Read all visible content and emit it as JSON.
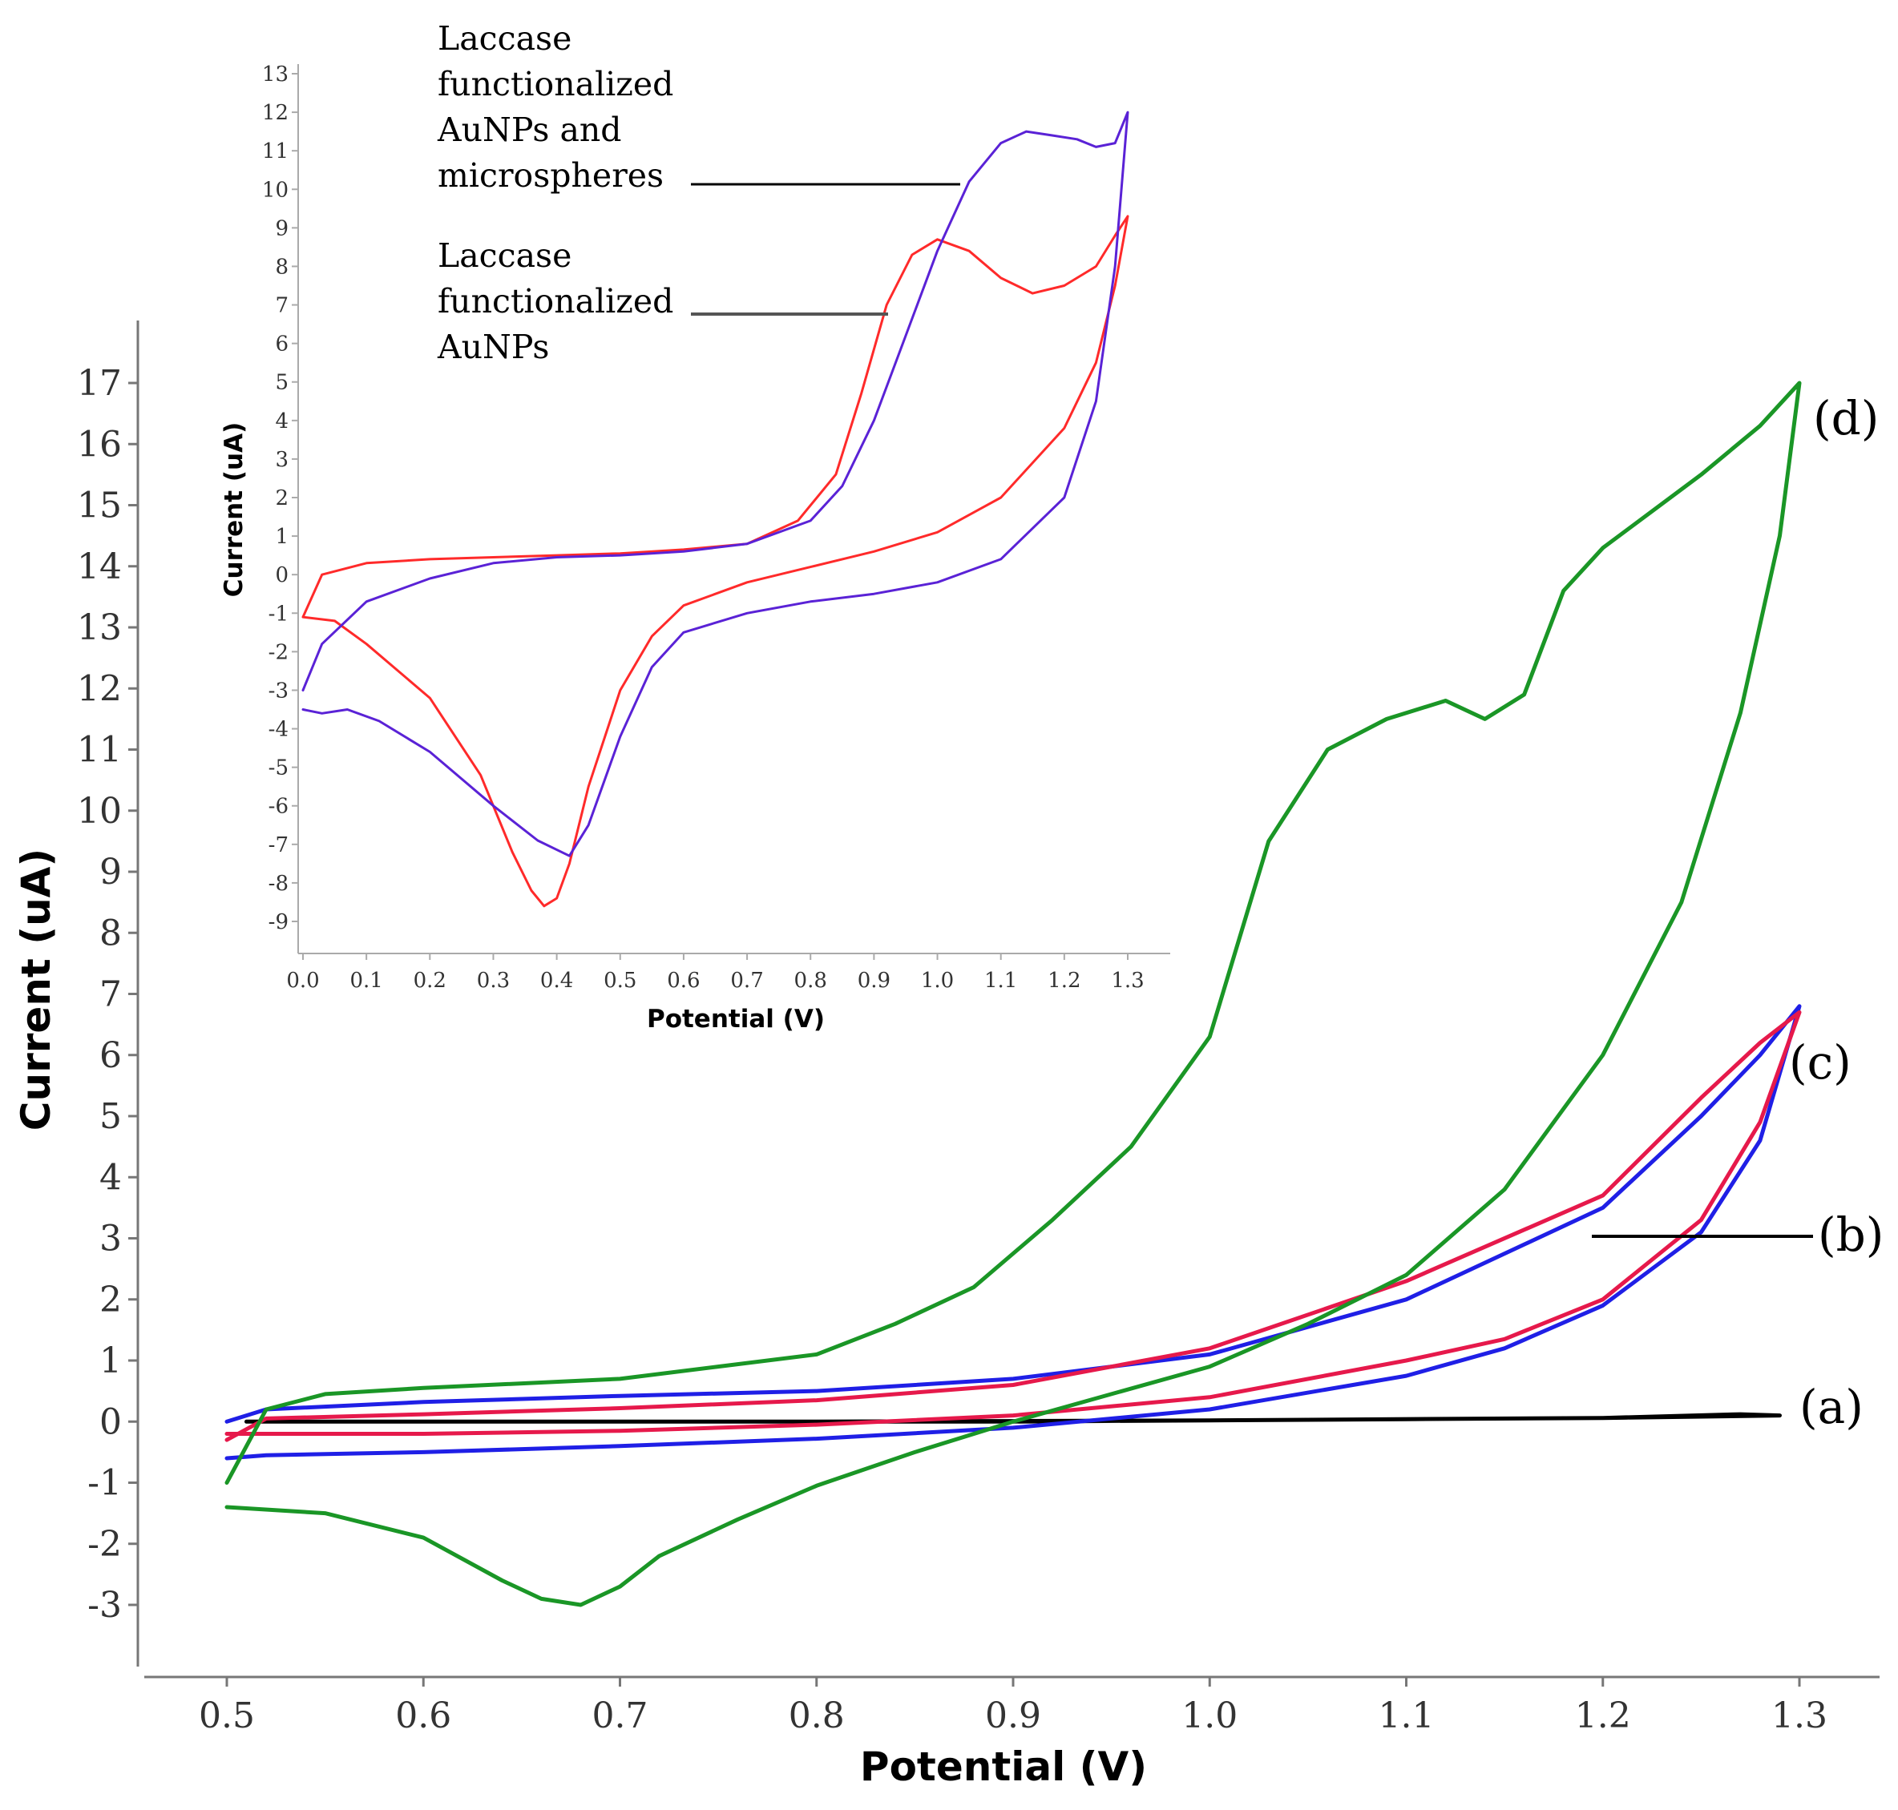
{
  "chart_data": [
    {
      "type": "line",
      "role": "main",
      "xlabel": "Potential (V)",
      "ylabel": "Current (uA)",
      "xlim": [
        0.5,
        1.3
      ],
      "ylim": [
        -3,
        17
      ],
      "x_ticks": [
        "0.5",
        "0.6",
        "0.7",
        "0.8",
        "0.9",
        "1.0",
        "1.1",
        "1.2",
        "1.3"
      ],
      "y_ticks": [
        "-3",
        "-2",
        "-1",
        "0",
        "1",
        "2",
        "3",
        "4",
        "5",
        "6",
        "7",
        "8",
        "9",
        "10",
        "11",
        "12",
        "13",
        "14",
        "15",
        "16",
        "17"
      ],
      "grid": false,
      "labels": [
        {
          "id": "a",
          "text": "(a)"
        },
        {
          "id": "b",
          "text": "(b)"
        },
        {
          "id": "c",
          "text": "(c)"
        },
        {
          "id": "d",
          "text": "(d)"
        }
      ],
      "series": [
        {
          "name": "(a)",
          "color": "#000000",
          "points": [
            [
              0.51,
              0.0
            ],
            [
              0.6,
              0.0
            ],
            [
              0.7,
              0.0
            ],
            [
              0.8,
              0.0
            ],
            [
              0.9,
              0.0
            ],
            [
              1.0,
              0.02
            ],
            [
              1.1,
              0.04
            ],
            [
              1.2,
              0.06
            ],
            [
              1.27,
              0.12
            ],
            [
              1.29,
              0.1
            ],
            [
              1.2,
              0.06
            ],
            [
              1.0,
              0.02
            ],
            [
              0.8,
              0.0
            ],
            [
              0.6,
              0.0
            ],
            [
              0.51,
              0.0
            ]
          ]
        },
        {
          "name": "(b)",
          "color": "#1f1fe6",
          "points": [
            [
              0.5,
              -0.6
            ],
            [
              0.52,
              -0.55
            ],
            [
              0.6,
              -0.5
            ],
            [
              0.7,
              -0.4
            ],
            [
              0.8,
              -0.28
            ],
            [
              0.9,
              -0.1
            ],
            [
              1.0,
              0.2
            ],
            [
              1.1,
              0.75
            ],
            [
              1.15,
              1.2
            ],
            [
              1.2,
              1.9
            ],
            [
              1.25,
              3.1
            ],
            [
              1.28,
              4.6
            ],
            [
              1.3,
              6.8
            ],
            [
              1.28,
              6.0
            ],
            [
              1.25,
              5.0
            ],
            [
              1.2,
              3.5
            ],
            [
              1.1,
              2.0
            ],
            [
              1.0,
              1.1
            ],
            [
              0.9,
              0.7
            ],
            [
              0.8,
              0.5
            ],
            [
              0.7,
              0.42
            ],
            [
              0.6,
              0.32
            ],
            [
              0.52,
              0.2
            ],
            [
              0.5,
              0.0
            ]
          ]
        },
        {
          "name": "(c)",
          "color": "#e6194b",
          "points": [
            [
              0.5,
              -0.2
            ],
            [
              0.52,
              -0.2
            ],
            [
              0.6,
              -0.2
            ],
            [
              0.7,
              -0.15
            ],
            [
              0.8,
              -0.05
            ],
            [
              0.9,
              0.1
            ],
            [
              1.0,
              0.4
            ],
            [
              1.1,
              1.0
            ],
            [
              1.15,
              1.35
            ],
            [
              1.2,
              2.0
            ],
            [
              1.25,
              3.3
            ],
            [
              1.28,
              4.9
            ],
            [
              1.3,
              6.7
            ],
            [
              1.28,
              6.2
            ],
            [
              1.25,
              5.3
            ],
            [
              1.2,
              3.7
            ],
            [
              1.1,
              2.3
            ],
            [
              1.0,
              1.2
            ],
            [
              0.9,
              0.6
            ],
            [
              0.8,
              0.35
            ],
            [
              0.7,
              0.22
            ],
            [
              0.6,
              0.12
            ],
            [
              0.52,
              0.05
            ],
            [
              0.5,
              -0.3
            ]
          ]
        },
        {
          "name": "(d)",
          "color": "#1a9626",
          "points": [
            [
              0.5,
              -1.4
            ],
            [
              0.55,
              -1.5
            ],
            [
              0.6,
              -1.9
            ],
            [
              0.64,
              -2.6
            ],
            [
              0.66,
              -2.9
            ],
            [
              0.68,
              -3.0
            ],
            [
              0.7,
              -2.7
            ],
            [
              0.72,
              -2.2
            ],
            [
              0.76,
              -1.6
            ],
            [
              0.8,
              -1.05
            ],
            [
              0.85,
              -0.5
            ],
            [
              0.9,
              0.0
            ],
            [
              0.95,
              0.45
            ],
            [
              1.0,
              0.9
            ],
            [
              1.05,
              1.6
            ],
            [
              1.1,
              2.4
            ],
            [
              1.15,
              3.8
            ],
            [
              1.2,
              6.0
            ],
            [
              1.24,
              8.5
            ],
            [
              1.27,
              11.6
            ],
            [
              1.29,
              14.5
            ],
            [
              1.3,
              17.0
            ],
            [
              1.28,
              16.3
            ],
            [
              1.25,
              15.5
            ],
            [
              1.2,
              14.3
            ],
            [
              1.18,
              13.6
            ],
            [
              1.16,
              11.9
            ],
            [
              1.14,
              11.5
            ],
            [
              1.12,
              11.8
            ],
            [
              1.09,
              11.5
            ],
            [
              1.06,
              11.0
            ],
            [
              1.03,
              9.5
            ],
            [
              1.0,
              6.3
            ],
            [
              0.96,
              4.5
            ],
            [
              0.92,
              3.3
            ],
            [
              0.88,
              2.2
            ],
            [
              0.84,
              1.6
            ],
            [
              0.8,
              1.1
            ],
            [
              0.75,
              0.9
            ],
            [
              0.7,
              0.7
            ],
            [
              0.6,
              0.55
            ],
            [
              0.55,
              0.45
            ],
            [
              0.52,
              0.2
            ],
            [
              0.5,
              -1.0
            ]
          ]
        }
      ]
    },
    {
      "type": "line",
      "role": "inset",
      "xlabel": "Potential (V)",
      "ylabel": "Current (uA)",
      "xlim": [
        0.0,
        1.3
      ],
      "ylim": [
        -9,
        13
      ],
      "x_ticks": [
        "0.0",
        "0.1",
        "0.2",
        "0.3",
        "0.4",
        "0.5",
        "0.6",
        "0.7",
        "0.8",
        "0.9",
        "1.0",
        "1.1",
        "1.2",
        "1.3"
      ],
      "y_ticks": [
        "-9",
        "-8",
        "-7",
        "-6",
        "-5",
        "-4",
        "-3",
        "-2",
        "-1",
        "0",
        "1",
        "2",
        "3",
        "4",
        "5",
        "6",
        "7",
        "8",
        "9",
        "10",
        "11",
        "12",
        "13"
      ],
      "grid": false,
      "annotations": [
        {
          "id": "micro",
          "lines": [
            "Laccase",
            "functionalized",
            "AuNPs and",
            "microspheres"
          ]
        },
        {
          "id": "aunp",
          "lines": [
            "Laccase",
            "functionalized",
            "AuNPs"
          ]
        }
      ],
      "series": [
        {
          "name": "Laccase functionalized AuNPs",
          "color": "#ff2a2a",
          "points": [
            [
              0.0,
              -1.1
            ],
            [
              0.05,
              -1.2
            ],
            [
              0.1,
              -1.8
            ],
            [
              0.2,
              -3.2
            ],
            [
              0.28,
              -5.2
            ],
            [
              0.33,
              -7.2
            ],
            [
              0.36,
              -8.2
            ],
            [
              0.38,
              -8.6
            ],
            [
              0.4,
              -8.4
            ],
            [
              0.42,
              -7.5
            ],
            [
              0.45,
              -5.5
            ],
            [
              0.5,
              -3.0
            ],
            [
              0.55,
              -1.6
            ],
            [
              0.6,
              -0.8
            ],
            [
              0.7,
              -0.2
            ],
            [
              0.8,
              0.2
            ],
            [
              0.9,
              0.6
            ],
            [
              1.0,
              1.1
            ],
            [
              1.1,
              2.0
            ],
            [
              1.2,
              3.8
            ],
            [
              1.25,
              5.5
            ],
            [
              1.28,
              7.5
            ],
            [
              1.3,
              9.3
            ],
            [
              1.28,
              8.8
            ],
            [
              1.25,
              8.0
            ],
            [
              1.2,
              7.5
            ],
            [
              1.15,
              7.3
            ],
            [
              1.1,
              7.7
            ],
            [
              1.05,
              8.4
            ],
            [
              1.0,
              8.7
            ],
            [
              0.96,
              8.3
            ],
            [
              0.92,
              7.0
            ],
            [
              0.88,
              4.7
            ],
            [
              0.84,
              2.6
            ],
            [
              0.78,
              1.4
            ],
            [
              0.7,
              0.8
            ],
            [
              0.6,
              0.65
            ],
            [
              0.5,
              0.55
            ],
            [
              0.4,
              0.5
            ],
            [
              0.3,
              0.45
            ],
            [
              0.2,
              0.4
            ],
            [
              0.1,
              0.3
            ],
            [
              0.03,
              0.0
            ],
            [
              0.0,
              -1.1
            ]
          ]
        },
        {
          "name": "Laccase functionalized AuNPs and microspheres",
          "color": "#5a22d6",
          "points": [
            [
              0.0,
              -3.5
            ],
            [
              0.03,
              -3.6
            ],
            [
              0.07,
              -3.5
            ],
            [
              0.12,
              -3.8
            ],
            [
              0.2,
              -4.6
            ],
            [
              0.3,
              -6.0
            ],
            [
              0.37,
              -6.9
            ],
            [
              0.42,
              -7.3
            ],
            [
              0.45,
              -6.5
            ],
            [
              0.5,
              -4.2
            ],
            [
              0.55,
              -2.4
            ],
            [
              0.6,
              -1.5
            ],
            [
              0.7,
              -1.0
            ],
            [
              0.8,
              -0.7
            ],
            [
              0.9,
              -0.5
            ],
            [
              1.0,
              -0.2
            ],
            [
              1.1,
              0.4
            ],
            [
              1.2,
              2.0
            ],
            [
              1.25,
              4.5
            ],
            [
              1.28,
              8.0
            ],
            [
              1.3,
              12.0
            ],
            [
              1.28,
              11.2
            ],
            [
              1.25,
              11.1
            ],
            [
              1.22,
              11.3
            ],
            [
              1.18,
              11.4
            ],
            [
              1.14,
              11.5
            ],
            [
              1.1,
              11.2
            ],
            [
              1.05,
              10.2
            ],
            [
              1.0,
              8.4
            ],
            [
              0.95,
              6.2
            ],
            [
              0.9,
              4.0
            ],
            [
              0.85,
              2.3
            ],
            [
              0.8,
              1.4
            ],
            [
              0.7,
              0.8
            ],
            [
              0.6,
              0.6
            ],
            [
              0.5,
              0.5
            ],
            [
              0.4,
              0.45
            ],
            [
              0.3,
              0.3
            ],
            [
              0.2,
              -0.1
            ],
            [
              0.1,
              -0.7
            ],
            [
              0.03,
              -1.8
            ],
            [
              0.0,
              -3.0
            ]
          ]
        }
      ]
    }
  ]
}
